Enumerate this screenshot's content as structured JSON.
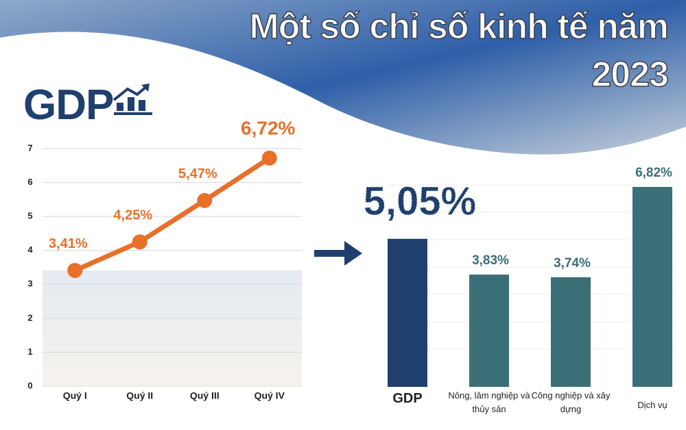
{
  "title": "Một số chỉ số kinh tế năm 2023",
  "heading": "GDP",
  "chart_data": [
    {
      "type": "line",
      "categories": [
        "Quý I",
        "Quý II",
        "Quý III",
        "Quý IV"
      ],
      "values": [
        3.41,
        4.25,
        5.47,
        6.72
      ],
      "value_labels": [
        "3,41%",
        "4,25%",
        "5,47%",
        "6,72%"
      ],
      "color": "#e8702a",
      "ylim": [
        0,
        7
      ],
      "yticks": [
        0,
        1,
        2,
        3,
        4,
        5,
        6,
        7
      ],
      "grid": true
    },
    {
      "type": "bar",
      "categories": [
        "GDP",
        "Nông, lâm nghiệp và thủy sản",
        "Công nghiệp và xây dựng",
        "Dịch vụ"
      ],
      "values": [
        5.05,
        3.83,
        3.74,
        6.82
      ],
      "value_labels": [
        "5,05%",
        "3,83%",
        "3,74%",
        "6,82%"
      ],
      "colors": [
        "#1f3f6e",
        "#3b6f78",
        "#3b6f78",
        "#3b6f78"
      ]
    }
  ]
}
